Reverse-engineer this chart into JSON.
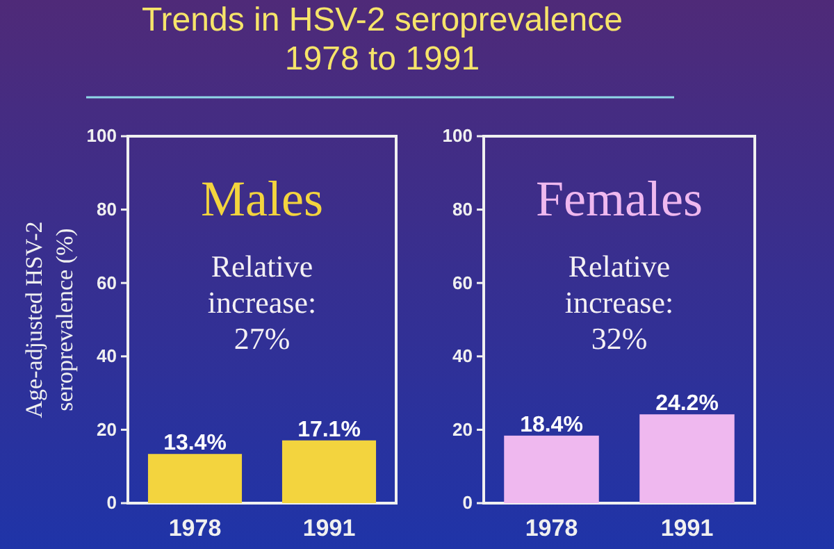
{
  "chart_data": [
    {
      "type": "bar",
      "title": "Trends in HSV-2 seroprevalence 1978 to 1991",
      "subtitle": "Males",
      "ylabel": "Age-adjusted HSV-2 seroprevalence (%)",
      "categories": [
        "1978",
        "1991"
      ],
      "values": [
        13.4,
        17.1
      ],
      "color": "#f3d43e",
      "value_labels": [
        "13.4%",
        "17.1%"
      ],
      "ylim": [
        0,
        100
      ],
      "yticks": [
        0,
        20,
        40,
        60,
        80,
        100
      ],
      "annotations": [
        "Relative increase: 27%"
      ]
    },
    {
      "type": "bar",
      "subtitle": "Females",
      "categories": [
        "1978",
        "1991"
      ],
      "values": [
        18.4,
        24.2
      ],
      "color": "#efb8ef",
      "value_labels": [
        "18.4%",
        "24.2%"
      ],
      "ylim": [
        0,
        100
      ],
      "yticks": [
        0,
        20,
        40,
        60,
        80,
        100
      ],
      "annotations": [
        "Relative increase: 32%"
      ]
    }
  ]
}
